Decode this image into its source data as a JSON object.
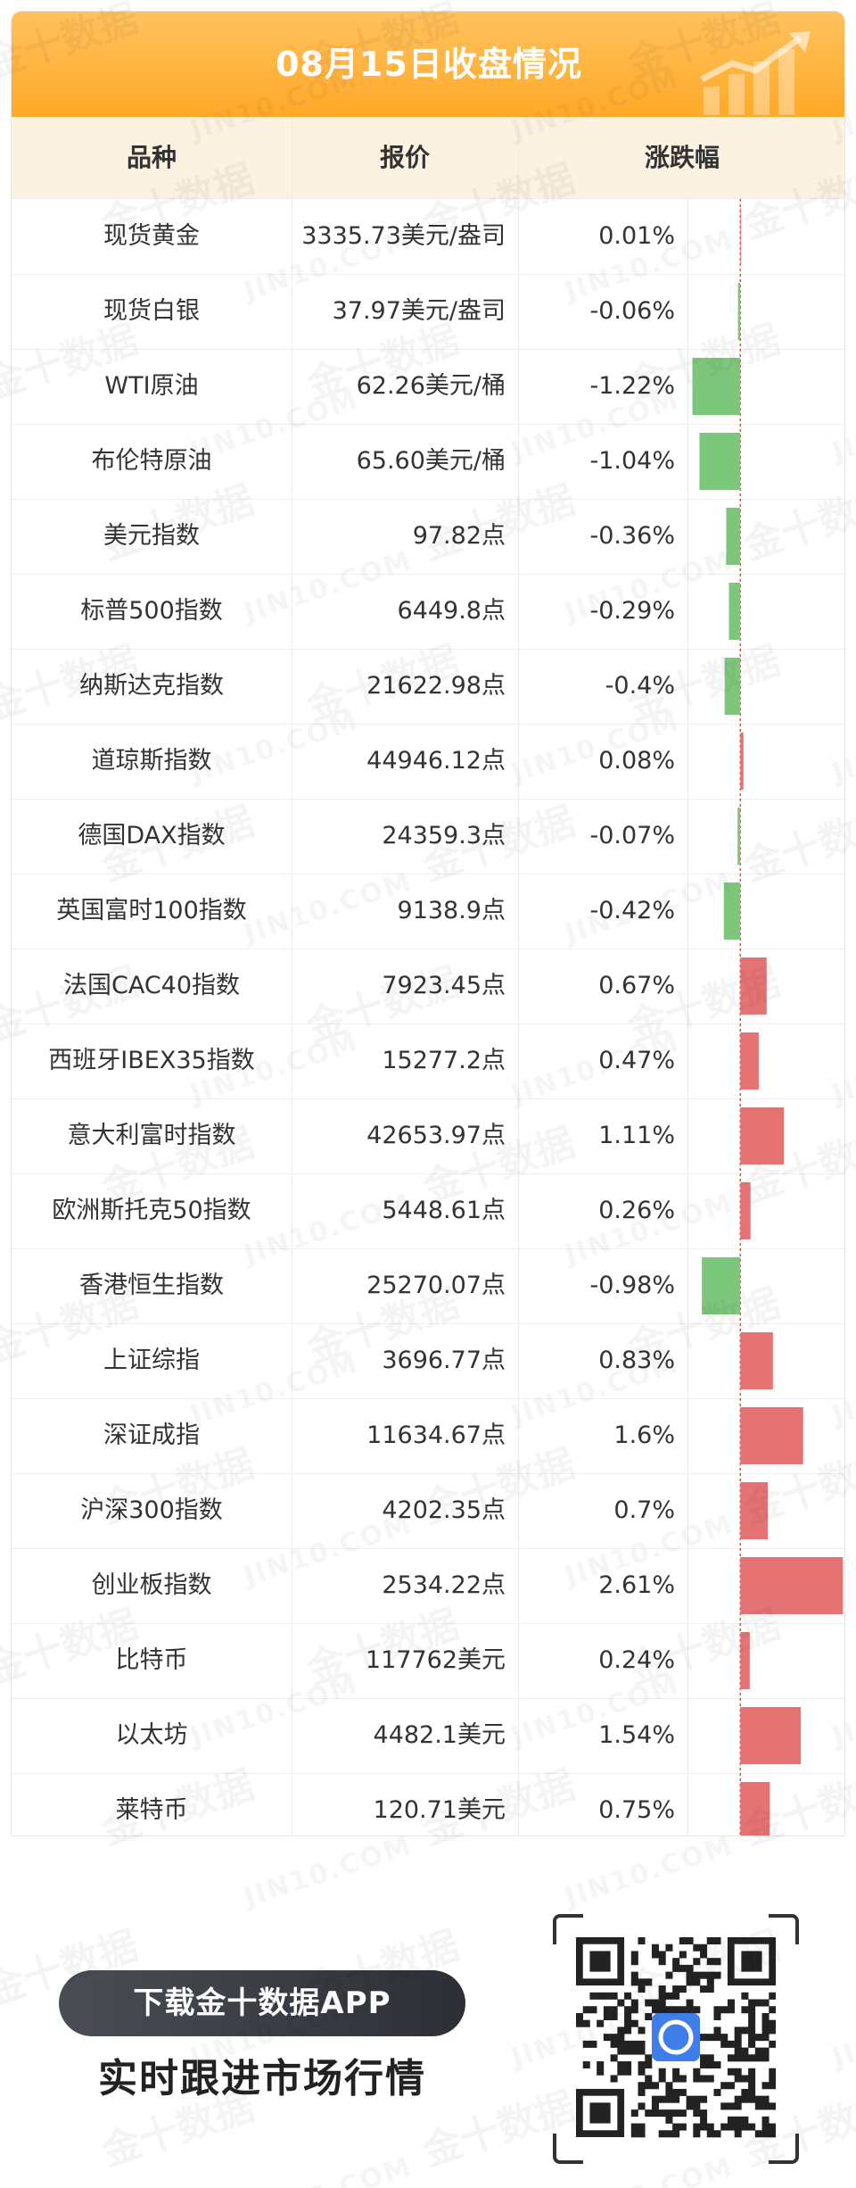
{
  "header": {
    "title": "08月15日收盘情况"
  },
  "columns": {
    "name": "品种",
    "price": "报价",
    "change": "涨跌幅"
  },
  "rows": [
    {
      "name": "现货黄金",
      "price": "3335.73美元/盎司",
      "change": "0.01%"
    },
    {
      "name": "现货白银",
      "price": "37.97美元/盎司",
      "change": "-0.06%"
    },
    {
      "name": "WTI原油",
      "price": "62.26美元/桶",
      "change": "-1.22%"
    },
    {
      "name": "布伦特原油",
      "price": "65.60美元/桶",
      "change": "-1.04%"
    },
    {
      "name": "美元指数",
      "price": "97.82点",
      "change": "-0.36%"
    },
    {
      "name": "标普500指数",
      "price": "6449.8点",
      "change": "-0.29%"
    },
    {
      "name": "纳斯达克指数",
      "price": "21622.98点",
      "change": "-0.4%"
    },
    {
      "name": "道琼斯指数",
      "price": "44946.12点",
      "change": "0.08%"
    },
    {
      "name": "德国DAX指数",
      "price": "24359.3点",
      "change": "-0.07%"
    },
    {
      "name": "英国富时100指数",
      "price": "9138.9点",
      "change": "-0.42%"
    },
    {
      "name": "法国CAC40指数",
      "price": "7923.45点",
      "change": "0.67%"
    },
    {
      "name": "西班牙IBEX35指数",
      "price": "15277.2点",
      "change": "0.47%"
    },
    {
      "name": "意大利富时指数",
      "price": "42653.97点",
      "change": "1.11%"
    },
    {
      "name": "欧洲斯托克50指数",
      "price": "5448.61点",
      "change": "0.26%"
    },
    {
      "name": "香港恒生指数",
      "price": "25270.07点",
      "change": "-0.98%"
    },
    {
      "name": "上证综指",
      "price": "3696.77点",
      "change": "0.83%"
    },
    {
      "name": "深证成指",
      "price": "11634.67点",
      "change": "1.6%"
    },
    {
      "name": "沪深300指数",
      "price": "4202.35点",
      "change": "0.7%"
    },
    {
      "name": "创业板指数",
      "price": "2534.22点",
      "change": "2.61%"
    },
    {
      "name": "比特币",
      "price": "117762美元",
      "change": "0.24%"
    },
    {
      "name": "以太坊",
      "price": "4482.1美元",
      "change": "1.54%"
    },
    {
      "name": "莱特币",
      "price": "120.71美元",
      "change": "0.75%"
    }
  ],
  "chart_data": {
    "type": "bar",
    "orientation": "horizontal",
    "categories": [
      "现货黄金",
      "现货白银",
      "WTI原油",
      "布伦特原油",
      "美元指数",
      "标普500指数",
      "纳斯达克指数",
      "道琼斯指数",
      "德国DAX指数",
      "英国富时100指数",
      "法国CAC40指数",
      "西班牙IBEX35指数",
      "意大利富时指数",
      "欧洲斯托克50指数",
      "香港恒生指数",
      "上证综指",
      "深证成指",
      "沪深300指数",
      "创业板指数",
      "比特币",
      "以太坊",
      "莱特币"
    ],
    "values": [
      0.01,
      -0.06,
      -1.22,
      -1.04,
      -0.36,
      -0.29,
      -0.4,
      0.08,
      -0.07,
      -0.42,
      0.67,
      0.47,
      1.11,
      0.26,
      -0.98,
      0.83,
      1.6,
      0.7,
      2.61,
      0.24,
      1.54,
      0.75
    ],
    "colors": {
      "positive": "#e57373",
      "negative": "#7dc77d",
      "zero_line": "#d9534f"
    },
    "xlim": [
      -1.3,
      2.65
    ]
  },
  "promo": {
    "button": "下载金十数据APP",
    "subtitle": "实时跟进市场行情"
  },
  "watermark": {
    "cn": "金十数据",
    "en": "JIN10.COM"
  },
  "colors": {
    "title_bg": "#ffab2e",
    "header_bg": "#fcf2e2"
  },
  "icons": {
    "title_deco": "rising-chart-icon",
    "qr": "qr-code-icon",
    "qr_logo": "jin10-logo-icon"
  }
}
